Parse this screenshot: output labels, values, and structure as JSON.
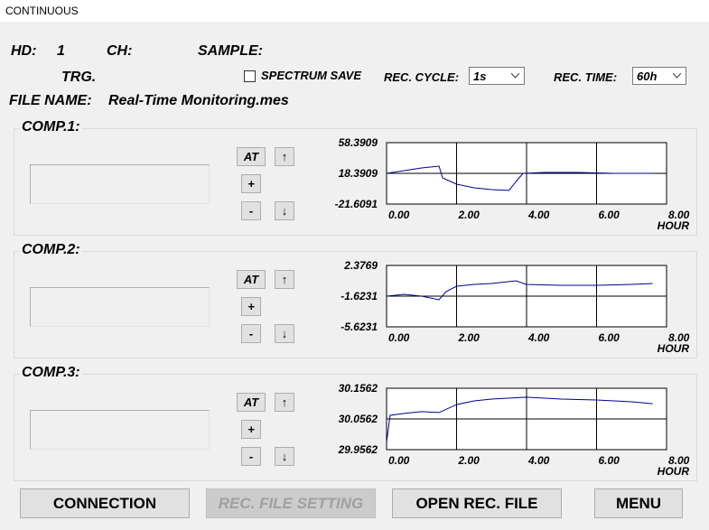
{
  "window": {
    "title": "CONTINUOUS"
  },
  "header": {
    "hd_label": "HD:",
    "hd_value": "1",
    "ch_label": "CH:",
    "sample_label": "SAMPLE:",
    "trg_label": "TRG.",
    "spectrum_save": "SPECTRUM SAVE",
    "rec_cycle_label": "REC. CYCLE:",
    "rec_cycle_value": "1s",
    "rec_time_label": "REC. TIME:",
    "rec_time_value": "60h",
    "file_name_label": "FILE NAME:",
    "file_name": "Real-Time Monitoring.mes"
  },
  "panels": [
    {
      "title": "COMP.1:",
      "buttons": [
        "AT",
        "↑",
        "+",
        "-",
        "↓"
      ],
      "chart": {
        "type": "line",
        "color": "#00008b",
        "xlabel": "HOUR",
        "x": [
          0,
          0.5,
          1.0,
          1.5,
          1.6,
          2.0,
          2.5,
          3.0,
          3.5,
          3.7,
          3.9,
          4.5,
          5.5,
          6.5,
          7.6
        ],
        "values": [
          18.4,
          21.9,
          25.4,
          27.8,
          12.5,
          4.3,
          -0.4,
          -2.8,
          -3.9,
          7.8,
          18.4,
          19.6,
          19.6,
          18.4,
          18.4
        ],
        "xlim": [
          0,
          8
        ],
        "ylim": [
          -21.6091,
          58.3909
        ],
        "yticks": [
          -21.6091,
          18.3909,
          58.3909
        ],
        "xticks": [
          {
            "value": 0,
            "label": "0.00"
          },
          {
            "value": 2,
            "label": "2.00"
          },
          {
            "value": 4,
            "label": "4.00"
          },
          {
            "value": 6,
            "label": "6.00"
          },
          {
            "value": 8,
            "label": "8.00"
          }
        ]
      }
    },
    {
      "title": "COMP.2:",
      "buttons": [
        "AT",
        "↑",
        "+",
        "-",
        "↓"
      ],
      "chart": {
        "type": "line",
        "color": "#00008b",
        "xlabel": "HOUR",
        "x": [
          0,
          0.5,
          1.0,
          1.5,
          1.7,
          2.0,
          2.5,
          3.0,
          3.7,
          4.0,
          5.0,
          6.0,
          7.0,
          7.6
        ],
        "values": [
          -1.62,
          -1.39,
          -1.62,
          -2.09,
          -1.04,
          -0.33,
          -0.09,
          0.02,
          0.38,
          -0.09,
          -0.21,
          -0.21,
          -0.09,
          0.02
        ],
        "xlim": [
          0,
          8
        ],
        "ylim": [
          -5.6231,
          2.3769
        ],
        "yticks": [
          -5.6231,
          -1.6231,
          2.3769
        ],
        "xticks": [
          {
            "value": 0,
            "label": "0.00"
          },
          {
            "value": 2,
            "label": "2.00"
          },
          {
            "value": 4,
            "label": "4.00"
          },
          {
            "value": 6,
            "label": "6.00"
          },
          {
            "value": 8,
            "label": "8.00"
          }
        ]
      }
    },
    {
      "title": "COMP.3:",
      "buttons": [
        "AT",
        "↑",
        "+",
        "-",
        "↓"
      ],
      "chart": {
        "type": "line",
        "color": "#00008b",
        "xlabel": "HOUR",
        "x": [
          0,
          0.1,
          0.5,
          1.0,
          1.5,
          2.0,
          2.5,
          3.0,
          4.0,
          5.0,
          6.0,
          7.0,
          7.6
        ],
        "values": [
          29.98,
          30.068,
          30.074,
          30.08,
          30.077,
          30.103,
          30.115,
          30.121,
          30.127,
          30.121,
          30.118,
          30.112,
          30.106
        ],
        "xlim": [
          0,
          8
        ],
        "ylim": [
          29.9562,
          30.1562
        ],
        "yticks": [
          29.9562,
          30.0562,
          30.1562
        ],
        "xticks": [
          {
            "value": 0,
            "label": "0.00"
          },
          {
            "value": 2,
            "label": "2.00"
          },
          {
            "value": 4,
            "label": "4.00"
          },
          {
            "value": 6,
            "label": "6.00"
          },
          {
            "value": 8,
            "label": "8.00"
          }
        ]
      }
    }
  ],
  "footer": {
    "buttons": [
      "CONNECTION",
      "REC. FILE SETTING",
      "OPEN REC. FILE",
      "MENU"
    ]
  }
}
